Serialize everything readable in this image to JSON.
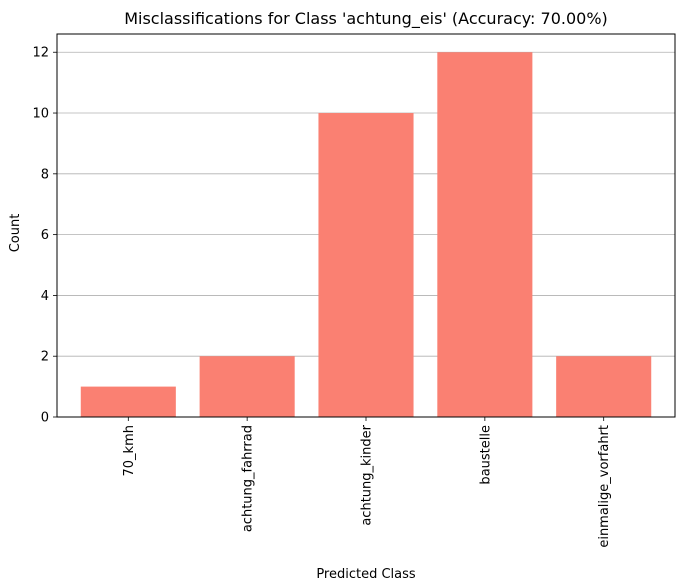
{
  "chart_data": {
    "type": "bar",
    "title": "Misclassifications for Class 'achtung_eis' (Accuracy: 70.00%)",
    "xlabel": "Predicted Class",
    "ylabel": "Count",
    "categories": [
      "70_kmh",
      "achtung_fahrrad",
      "achtung_kinder",
      "baustelle",
      "einmalige_vorfahrt"
    ],
    "values": [
      1,
      2,
      10,
      12,
      2
    ],
    "ylim": [
      0,
      12.6
    ],
    "yticks": [
      0,
      2,
      4,
      6,
      8,
      10,
      12
    ],
    "grid": "y-axis only",
    "bar_color": "#fa8072",
    "grid_color": "#b0b0b0"
  }
}
